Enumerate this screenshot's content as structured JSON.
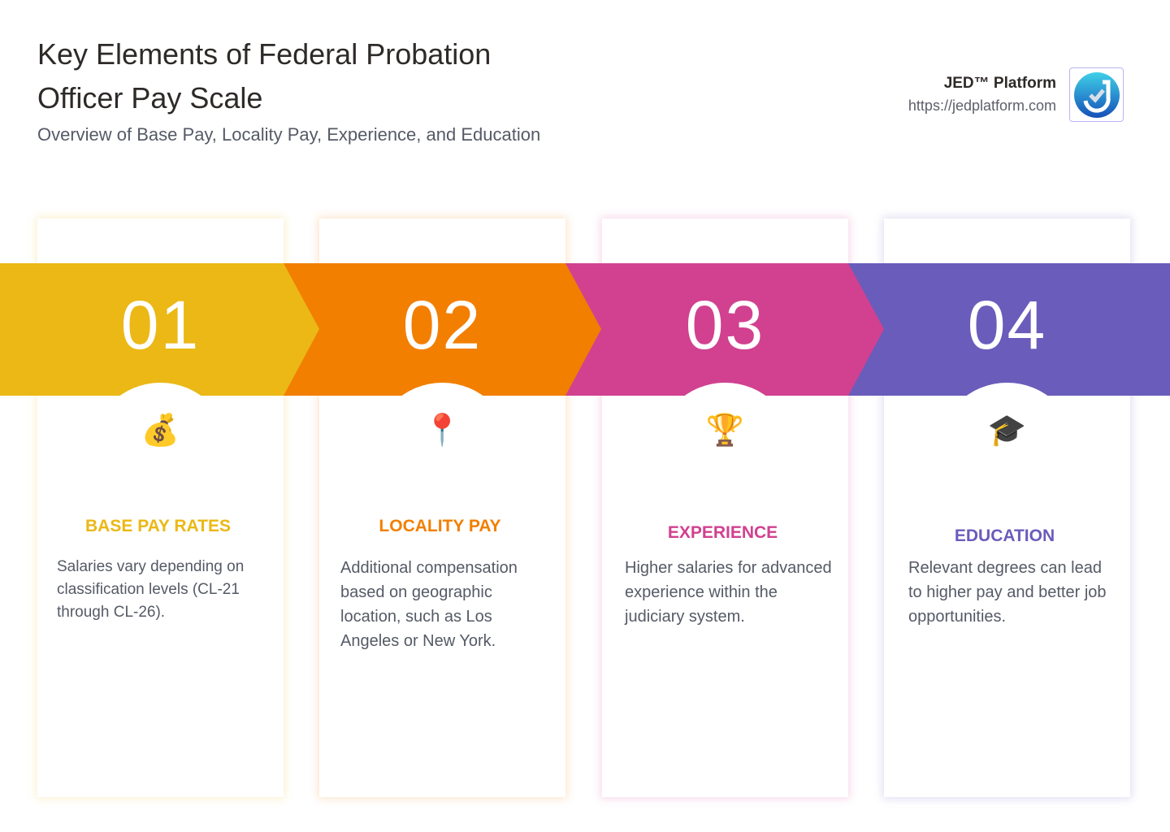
{
  "header": {
    "title": "Key Elements of Federal Probation Officer Pay Scale",
    "subtitle": "Overview of Base Pay, Locality Pay, Experience, and Education"
  },
  "brand": {
    "name": "JED™ Platform",
    "url": "https://jedplatform.com",
    "logo_icon": "check-logo-icon"
  },
  "steps": [
    {
      "number": "01",
      "icon": "money-bag-icon",
      "emoji": "💰",
      "title": "BASE PAY RATES",
      "text": "Salaries vary depending on classification levels (CL-21 through CL-26).",
      "color": "#ebb815"
    },
    {
      "number": "02",
      "icon": "pushpin-icon",
      "emoji": "📍",
      "title": "LOCALITY PAY",
      "text": "Additional compensation based on geographic location, such as Los Angeles or New York.",
      "color": "#f27f00"
    },
    {
      "number": "03",
      "icon": "trophy-icon",
      "emoji": "🏆",
      "title": "EXPERIENCE",
      "text": "Higher salaries for advanced experience within the judiciary system.",
      "color": "#d14190"
    },
    {
      "number": "04",
      "icon": "graduation-cap-icon",
      "emoji": "🎓",
      "title": "EDUCATION",
      "text": "Relevant degrees can lead to higher pay and better job opportunities.",
      "color": "#6a5cbb"
    }
  ]
}
